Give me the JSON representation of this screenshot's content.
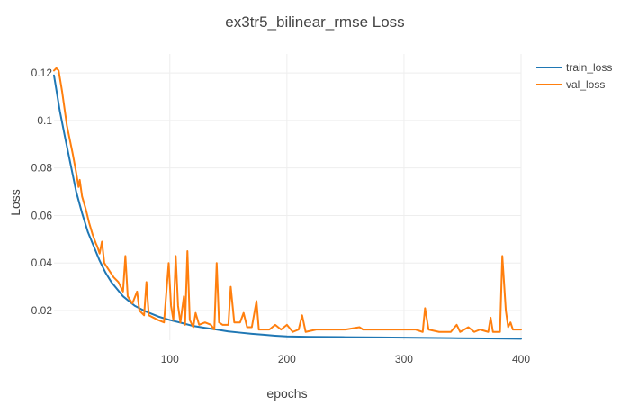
{
  "chart_data": {
    "type": "line",
    "title": "ex3tr5_bilinear_rmse Loss",
    "xlabel": "epochs",
    "ylabel": "Loss",
    "xlim": [
      1,
      400
    ],
    "ylim": [
      0.0075,
      0.128
    ],
    "x_ticks": [
      100,
      200,
      300,
      400
    ],
    "y_ticks": [
      0.02,
      0.04,
      0.06,
      0.08,
      0.1,
      0.12
    ],
    "y_tick_labels": [
      "0.02",
      "0.04",
      "0.06",
      "0.08",
      "0.1",
      "0.12"
    ],
    "grid": true,
    "legend_position": "top-right",
    "series": [
      {
        "name": "train_loss",
        "color": "#1f77b4",
        "points": [
          [
            1,
            0.119
          ],
          [
            3,
            0.113
          ],
          [
            6,
            0.104
          ],
          [
            10,
            0.094
          ],
          [
            15,
            0.082
          ],
          [
            20,
            0.07
          ],
          [
            25,
            0.061
          ],
          [
            30,
            0.053
          ],
          [
            35,
            0.047
          ],
          [
            40,
            0.041
          ],
          [
            45,
            0.036
          ],
          [
            50,
            0.032
          ],
          [
            55,
            0.029
          ],
          [
            60,
            0.026
          ],
          [
            65,
            0.024
          ],
          [
            70,
            0.022
          ],
          [
            80,
            0.0195
          ],
          [
            90,
            0.0175
          ],
          [
            100,
            0.016
          ],
          [
            110,
            0.0148
          ],
          [
            120,
            0.0135
          ],
          [
            130,
            0.0127
          ],
          [
            140,
            0.012
          ],
          [
            150,
            0.0112
          ],
          [
            160,
            0.0107
          ],
          [
            170,
            0.0102
          ],
          [
            180,
            0.0098
          ],
          [
            190,
            0.0094
          ],
          [
            200,
            0.0091
          ],
          [
            220,
            0.0089
          ],
          [
            250,
            0.0088
          ],
          [
            280,
            0.0087
          ],
          [
            300,
            0.0086
          ],
          [
            320,
            0.0085
          ],
          [
            340,
            0.0084
          ],
          [
            360,
            0.0083
          ],
          [
            380,
            0.0082
          ],
          [
            400,
            0.0081
          ]
        ]
      },
      {
        "name": "val_loss",
        "color": "#ff7f0e",
        "points": [
          [
            1,
            0.121
          ],
          [
            3,
            0.122
          ],
          [
            5,
            0.121
          ],
          [
            8,
            0.112
          ],
          [
            12,
            0.098
          ],
          [
            17,
            0.086
          ],
          [
            20,
            0.078
          ],
          [
            22,
            0.072
          ],
          [
            23,
            0.075
          ],
          [
            25,
            0.068
          ],
          [
            28,
            0.063
          ],
          [
            31,
            0.057
          ],
          [
            34,
            0.052
          ],
          [
            37,
            0.048
          ],
          [
            38,
            0.047
          ],
          [
            40,
            0.044
          ],
          [
            42,
            0.049
          ],
          [
            44,
            0.04
          ],
          [
            48,
            0.037
          ],
          [
            52,
            0.034
          ],
          [
            56,
            0.032
          ],
          [
            60,
            0.028
          ],
          [
            62,
            0.043
          ],
          [
            64,
            0.026
          ],
          [
            68,
            0.023
          ],
          [
            72,
            0.028
          ],
          [
            74,
            0.02
          ],
          [
            78,
            0.018
          ],
          [
            80,
            0.032
          ],
          [
            82,
            0.018
          ],
          [
            86,
            0.017
          ],
          [
            90,
            0.016
          ],
          [
            95,
            0.015
          ],
          [
            99,
            0.04
          ],
          [
            101,
            0.022
          ],
          [
            103,
            0.016
          ],
          [
            105,
            0.043
          ],
          [
            107,
            0.022
          ],
          [
            109,
            0.015
          ],
          [
            112,
            0.026
          ],
          [
            113,
            0.014
          ],
          [
            115,
            0.045
          ],
          [
            117,
            0.016
          ],
          [
            120,
            0.013
          ],
          [
            122,
            0.019
          ],
          [
            125,
            0.014
          ],
          [
            130,
            0.015
          ],
          [
            135,
            0.014
          ],
          [
            138,
            0.012
          ],
          [
            140,
            0.04
          ],
          [
            142,
            0.015
          ],
          [
            145,
            0.014
          ],
          [
            150,
            0.014
          ],
          [
            152,
            0.03
          ],
          [
            155,
            0.015
          ],
          [
            160,
            0.015
          ],
          [
            163,
            0.019
          ],
          [
            166,
            0.013
          ],
          [
            170,
            0.013
          ],
          [
            174,
            0.024
          ],
          [
            176,
            0.012
          ],
          [
            180,
            0.012
          ],
          [
            185,
            0.012
          ],
          [
            190,
            0.014
          ],
          [
            195,
            0.012
          ],
          [
            200,
            0.014
          ],
          [
            205,
            0.011
          ],
          [
            210,
            0.012
          ],
          [
            213,
            0.018
          ],
          [
            216,
            0.011
          ],
          [
            225,
            0.012
          ],
          [
            235,
            0.012
          ],
          [
            250,
            0.012
          ],
          [
            262,
            0.013
          ],
          [
            265,
            0.012
          ],
          [
            280,
            0.012
          ],
          [
            300,
            0.012
          ],
          [
            310,
            0.012
          ],
          [
            316,
            0.011
          ],
          [
            318,
            0.021
          ],
          [
            321,
            0.012
          ],
          [
            330,
            0.011
          ],
          [
            340,
            0.011
          ],
          [
            345,
            0.014
          ],
          [
            348,
            0.011
          ],
          [
            355,
            0.013
          ],
          [
            360,
            0.011
          ],
          [
            365,
            0.012
          ],
          [
            372,
            0.011
          ],
          [
            374,
            0.017
          ],
          [
            376,
            0.011
          ],
          [
            382,
            0.011
          ],
          [
            384,
            0.043
          ],
          [
            387,
            0.02
          ],
          [
            389,
            0.013
          ],
          [
            391,
            0.015
          ],
          [
            393,
            0.012
          ],
          [
            396,
            0.012
          ],
          [
            400,
            0.012
          ]
        ]
      }
    ]
  }
}
